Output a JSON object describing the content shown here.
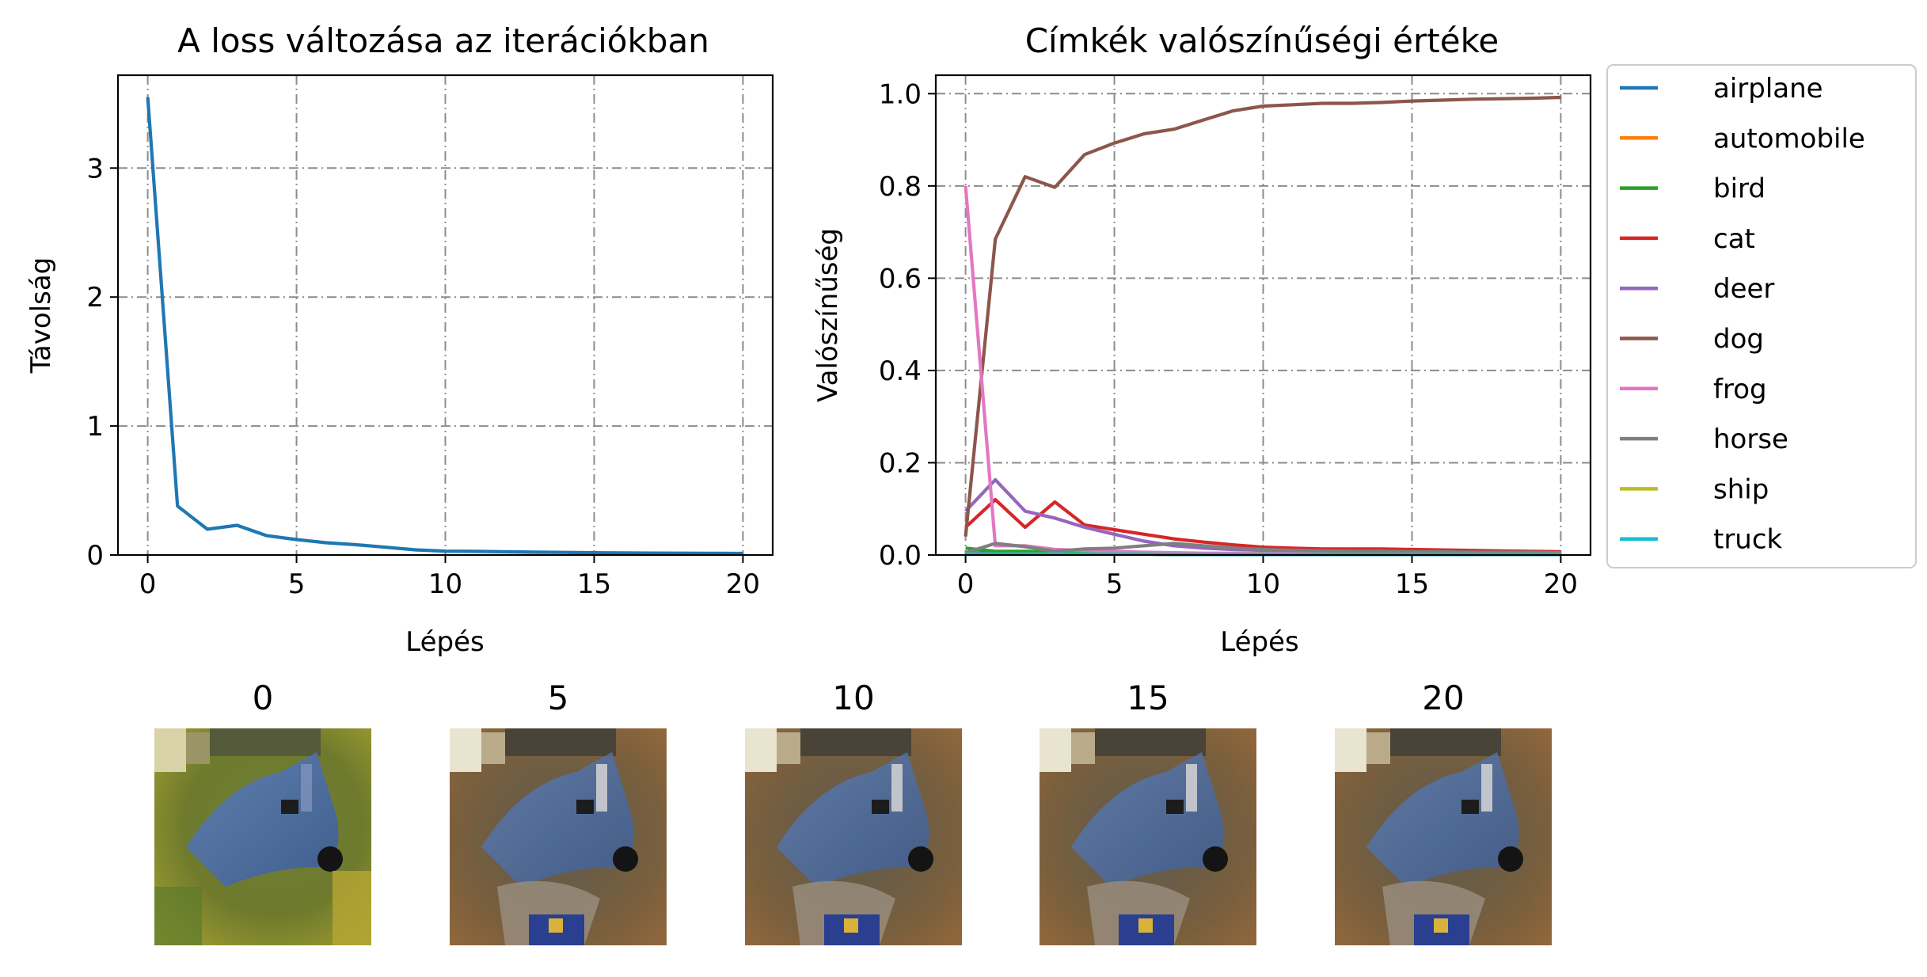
{
  "chart_data": [
    {
      "type": "line",
      "title": "A loss változása az iterációkban",
      "xlabel": "Lépés",
      "ylabel": "Távolság",
      "xlim": [
        -1,
        21
      ],
      "ylim": [
        0,
        3.72
      ],
      "xticks": [
        0,
        5,
        10,
        15,
        20
      ],
      "yticks": [
        0,
        1,
        2,
        3
      ],
      "grid": true,
      "series": [
        {
          "color": "#1f77b4",
          "x": [
            0,
            1,
            2,
            3,
            4,
            5,
            6,
            7,
            8,
            9,
            10,
            11,
            12,
            13,
            14,
            15,
            16,
            17,
            18,
            19,
            20
          ],
          "values": [
            3.55,
            0.38,
            0.2,
            0.23,
            0.15,
            0.12,
            0.095,
            0.08,
            0.06,
            0.04,
            0.03,
            0.028,
            0.025,
            0.022,
            0.02,
            0.018,
            0.016,
            0.015,
            0.014,
            0.013,
            0.012
          ]
        }
      ]
    },
    {
      "type": "line",
      "title": "Címkék valószínűségi értéke",
      "xlabel": "Lépés",
      "ylabel": "Valószínűség",
      "xlim": [
        -1,
        21
      ],
      "ylim": [
        0,
        1.04
      ],
      "xticks": [
        0,
        5,
        10,
        15,
        20
      ],
      "yticks": [
        "0.0",
        "0.2",
        "0.4",
        "0.6",
        "0.8",
        "1.0"
      ],
      "grid": true,
      "legend": "outside-right-top",
      "x": [
        0,
        1,
        2,
        3,
        4,
        5,
        6,
        7,
        8,
        9,
        10,
        11,
        12,
        13,
        14,
        15,
        16,
        17,
        18,
        19,
        20
      ],
      "series": [
        {
          "name": "airplane",
          "color": "#1f77b4",
          "values": [
            0.005,
            0.004,
            0.004,
            0.003,
            0.003,
            0.003,
            0.002,
            0.002,
            0.002,
            0.002,
            0.002,
            0.002,
            0.002,
            0.002,
            0.002,
            0.002,
            0.002,
            0.002,
            0.002,
            0.002,
            0.002
          ]
        },
        {
          "name": "automobile",
          "color": "#ff7f0e",
          "values": [
            0.003,
            0.002,
            0.002,
            0.002,
            0.002,
            0.002,
            0.002,
            0.001,
            0.001,
            0.001,
            0.001,
            0.001,
            0.001,
            0.001,
            0.001,
            0.001,
            0.001,
            0.001,
            0.001,
            0.001,
            0.001
          ]
        },
        {
          "name": "bird",
          "color": "#2ca02c",
          "values": [
            0.015,
            0.008,
            0.008,
            0.006,
            0.006,
            0.005,
            0.004,
            0.004,
            0.003,
            0.003,
            0.003,
            0.003,
            0.003,
            0.003,
            0.003,
            0.003,
            0.003,
            0.003,
            0.003,
            0.003,
            0.003
          ]
        },
        {
          "name": "cat",
          "color": "#d62728",
          "values": [
            0.06,
            0.12,
            0.06,
            0.115,
            0.065,
            0.055,
            0.045,
            0.035,
            0.028,
            0.022,
            0.017,
            0.015,
            0.013,
            0.013,
            0.013,
            0.012,
            0.011,
            0.01,
            0.009,
            0.008,
            0.007
          ]
        },
        {
          "name": "deer",
          "color": "#9467bd",
          "values": [
            0.095,
            0.163,
            0.095,
            0.08,
            0.06,
            0.045,
            0.03,
            0.02,
            0.015,
            0.012,
            0.01,
            0.009,
            0.008,
            0.007,
            0.006,
            0.006,
            0.005,
            0.005,
            0.005,
            0.004,
            0.004
          ]
        },
        {
          "name": "dog",
          "color": "#8c564b",
          "values": [
            0.04,
            0.685,
            0.82,
            0.797,
            0.868,
            0.893,
            0.913,
            0.923,
            0.943,
            0.963,
            0.973,
            0.976,
            0.979,
            0.979,
            0.981,
            0.984,
            0.986,
            0.988,
            0.989,
            0.99,
            0.992
          ]
        },
        {
          "name": "frog",
          "color": "#e377c2",
          "values": [
            0.8,
            0.02,
            0.02,
            0.012,
            0.01,
            0.008,
            0.006,
            0.005,
            0.004,
            0.004,
            0.003,
            0.003,
            0.003,
            0.003,
            0.003,
            0.003,
            0.003,
            0.003,
            0.003,
            0.003,
            0.003
          ]
        },
        {
          "name": "horse",
          "color": "#7f7f7f",
          "values": [
            0.005,
            0.025,
            0.018,
            0.008,
            0.013,
            0.015,
            0.02,
            0.025,
            0.02,
            0.015,
            0.012,
            0.01,
            0.009,
            0.008,
            0.008,
            0.007,
            0.007,
            0.006,
            0.006,
            0.006,
            0.005
          ]
        },
        {
          "name": "ship",
          "color": "#bcbd22",
          "values": [
            0.002,
            0.002,
            0.002,
            0.002,
            0.002,
            0.002,
            0.002,
            0.001,
            0.001,
            0.001,
            0.001,
            0.001,
            0.001,
            0.001,
            0.001,
            0.001,
            0.001,
            0.001,
            0.001,
            0.001,
            0.001
          ]
        },
        {
          "name": "truck",
          "color": "#17becf",
          "values": [
            0.002,
            0.002,
            0.002,
            0.002,
            0.002,
            0.002,
            0.002,
            0.001,
            0.001,
            0.001,
            0.001,
            0.001,
            0.001,
            0.001,
            0.001,
            0.001,
            0.001,
            0.001,
            0.001,
            0.001,
            0.001
          ]
        }
      ]
    }
  ],
  "thumbnails": [
    {
      "label": "0",
      "variant": "original"
    },
    {
      "label": "5",
      "variant": "modified"
    },
    {
      "label": "10",
      "variant": "modified"
    },
    {
      "label": "15",
      "variant": "modified"
    },
    {
      "label": "20",
      "variant": "modified"
    }
  ]
}
